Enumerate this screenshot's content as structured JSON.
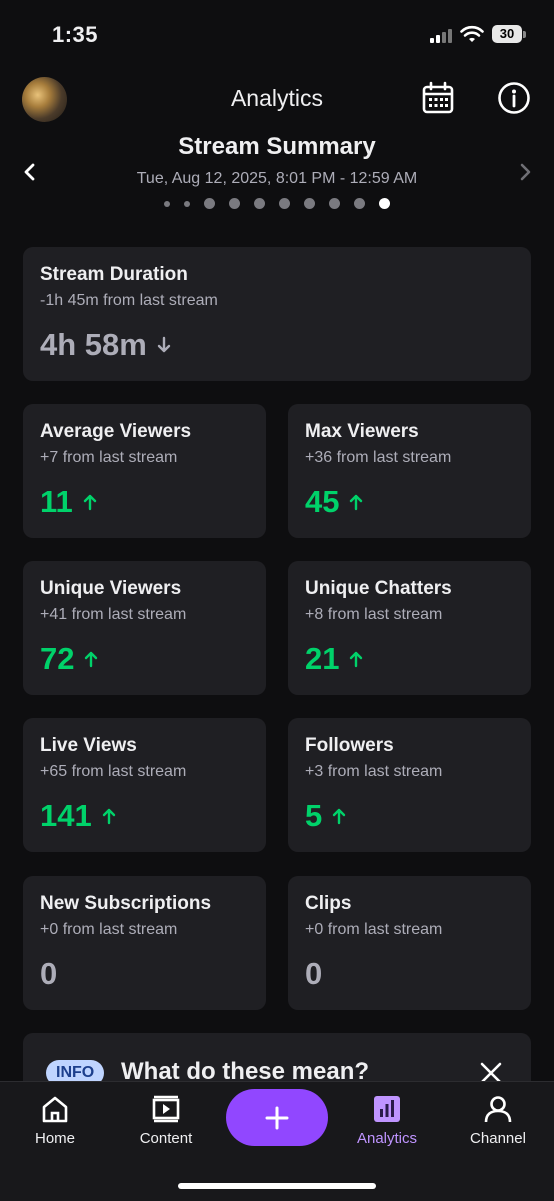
{
  "status_bar": {
    "time": "1:35",
    "battery": "30"
  },
  "header": {
    "title": "Analytics"
  },
  "summary": {
    "title": "Stream Summary",
    "date_range": "Tue, Aug 12, 2025, 8:01 PM - 12:59 AM",
    "page_count": 10,
    "active_page": 10
  },
  "stream_duration": {
    "title": "Stream Duration",
    "delta": "-1h 45m from last stream",
    "value": "4h 58m",
    "trend": "down"
  },
  "stats": [
    {
      "title": "Average Viewers",
      "delta": "+7 from last stream",
      "value": "11",
      "trend": "up"
    },
    {
      "title": "Max Viewers",
      "delta": "+36 from last stream",
      "value": "45",
      "trend": "up"
    },
    {
      "title": "Unique Viewers",
      "delta": "+41 from last stream",
      "value": "72",
      "trend": "up"
    },
    {
      "title": "Unique Chatters",
      "delta": "+8 from last stream",
      "value": "21",
      "trend": "up"
    },
    {
      "title": "Live Views",
      "delta": "+65 from last stream",
      "value": "141",
      "trend": "up"
    },
    {
      "title": "Followers",
      "delta": "+3 from last stream",
      "value": "5",
      "trend": "up"
    },
    {
      "title": "New Subscriptions",
      "delta": "+0 from last stream",
      "value": "0",
      "trend": "none"
    },
    {
      "title": "Clips",
      "delta": "+0 from last stream",
      "value": "0",
      "trend": "none"
    }
  ],
  "info_banner": {
    "badge": "INFO",
    "text": "What do these mean?"
  },
  "tabbar": {
    "home": "Home",
    "content": "Content",
    "analytics": "Analytics",
    "channel": "Channel"
  },
  "colors": {
    "accent": "#9147ff",
    "positive": "#00d26a",
    "card": "#1f1f23",
    "background": "#0e0e10"
  }
}
